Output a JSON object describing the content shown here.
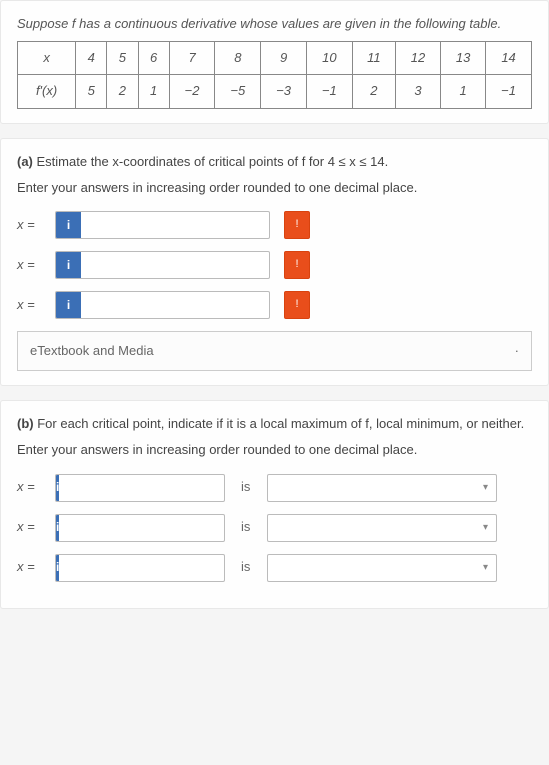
{
  "section1": {
    "intro": "Suppose f has a continuous derivative whose values are given in the following table.",
    "row1_label": "x",
    "row2_label": "f'(x)",
    "x_vals": [
      "4",
      "5",
      "6",
      "7",
      "8",
      "9",
      "10",
      "11",
      "12",
      "13",
      "14"
    ],
    "fp_vals": [
      "5",
      "2",
      "1",
      "−2",
      "−5",
      "−3",
      "−1",
      "2",
      "3",
      "1",
      "−1"
    ]
  },
  "partA": {
    "prompt": "Estimate the x-coordinates of critical points of f for 4 ≤ x ≤ 14.",
    "instruction": "Enter your answers in increasing order rounded to one decimal place.",
    "label": "x =",
    "info": "i",
    "etext": "eTextbook and Media",
    "etext_mark": "·"
  },
  "partB": {
    "prompt": "For each critical point, indicate if it is a local maximum of f, local minimum, or neither.",
    "instruction": "Enter your answers in increasing order rounded to one decimal place.",
    "label": "x =",
    "info": "i",
    "is": "is"
  }
}
